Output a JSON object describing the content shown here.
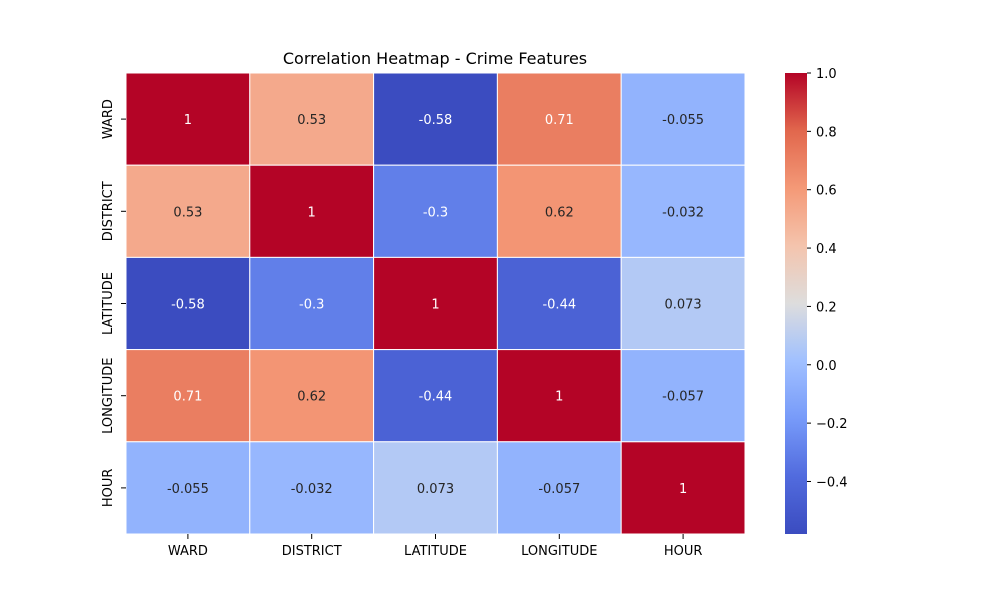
{
  "chart_data": {
    "type": "heatmap",
    "title": "Correlation Heatmap - Crime Features",
    "xlabel": "",
    "ylabel": "",
    "x_categories": [
      "WARD",
      "DISTRICT",
      "LATITUDE",
      "LONGITUDE",
      "HOUR"
    ],
    "y_categories": [
      "WARD",
      "DISTRICT",
      "LATITUDE",
      "LONGITUDE",
      "HOUR"
    ],
    "values": [
      [
        1,
        0.53,
        -0.58,
        0.71,
        -0.055
      ],
      [
        0.53,
        1,
        -0.3,
        0.62,
        -0.032
      ],
      [
        -0.58,
        -0.3,
        1,
        -0.44,
        0.073
      ],
      [
        0.71,
        0.62,
        -0.44,
        1,
        -0.057
      ],
      [
        -0.055,
        -0.032,
        0.073,
        -0.057,
        1
      ]
    ],
    "annotations": [
      [
        "1",
        "0.53",
        "-0.58",
        "0.71",
        "-0.055"
      ],
      [
        "0.53",
        "1",
        "-0.3",
        "0.62",
        "-0.032"
      ],
      [
        "-0.58",
        "-0.3",
        "1",
        "-0.44",
        "0.073"
      ],
      [
        "0.71",
        "0.62",
        "-0.44",
        "1",
        "-0.057"
      ],
      [
        "-0.055",
        "-0.032",
        "0.073",
        "-0.057",
        "1"
      ]
    ],
    "colormap": "coolwarm",
    "vmin": -0.58,
    "vmax": 1.0,
    "colorbar_ticks": [
      1.0,
      0.8,
      0.6,
      0.4,
      0.2,
      0.0,
      -0.2,
      -0.4
    ],
    "colorbar_tick_labels": [
      "1.0",
      "0.8",
      "0.6",
      "0.4",
      "0.2",
      "0.0",
      "−0.2",
      "−0.4"
    ],
    "grid": false,
    "cell_separator_color": "#ffffff",
    "legend": "colorbar-right"
  }
}
